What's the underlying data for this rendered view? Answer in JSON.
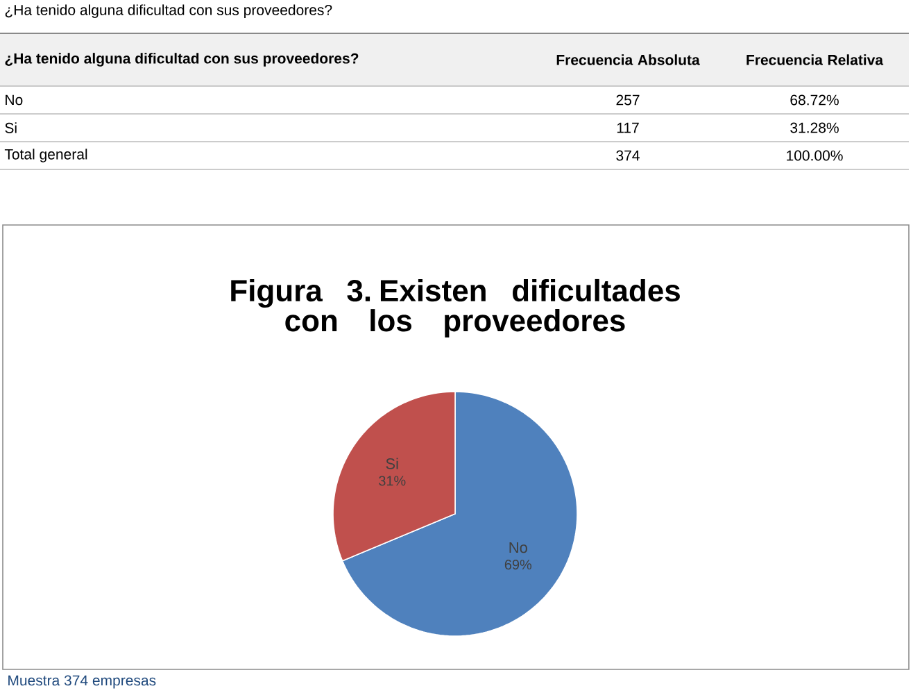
{
  "chart_data": {
    "type": "pie",
    "title": "Figura 3. Existen dificultades con los proveedores",
    "categories": [
      "No",
      "Si"
    ],
    "values": [
      68.72,
      31.28
    ],
    "value_labels": [
      "69%",
      "31%"
    ],
    "colors": [
      "#4f81bd",
      "#c0504d"
    ],
    "annotations": [
      "¿Ha tenido alguna dificultad con sus proveedores?",
      "¿Ha tenido alguna dificultad con sus proveedores?",
      "Frecuencia Absoluta",
      "Frecuencia Relativa",
      "No",
      "257",
      "68.72%",
      "Si",
      "117",
      "31.28%",
      "Total general",
      "374",
      "100.00%",
      "Muestra 374 empresas"
    ]
  }
}
